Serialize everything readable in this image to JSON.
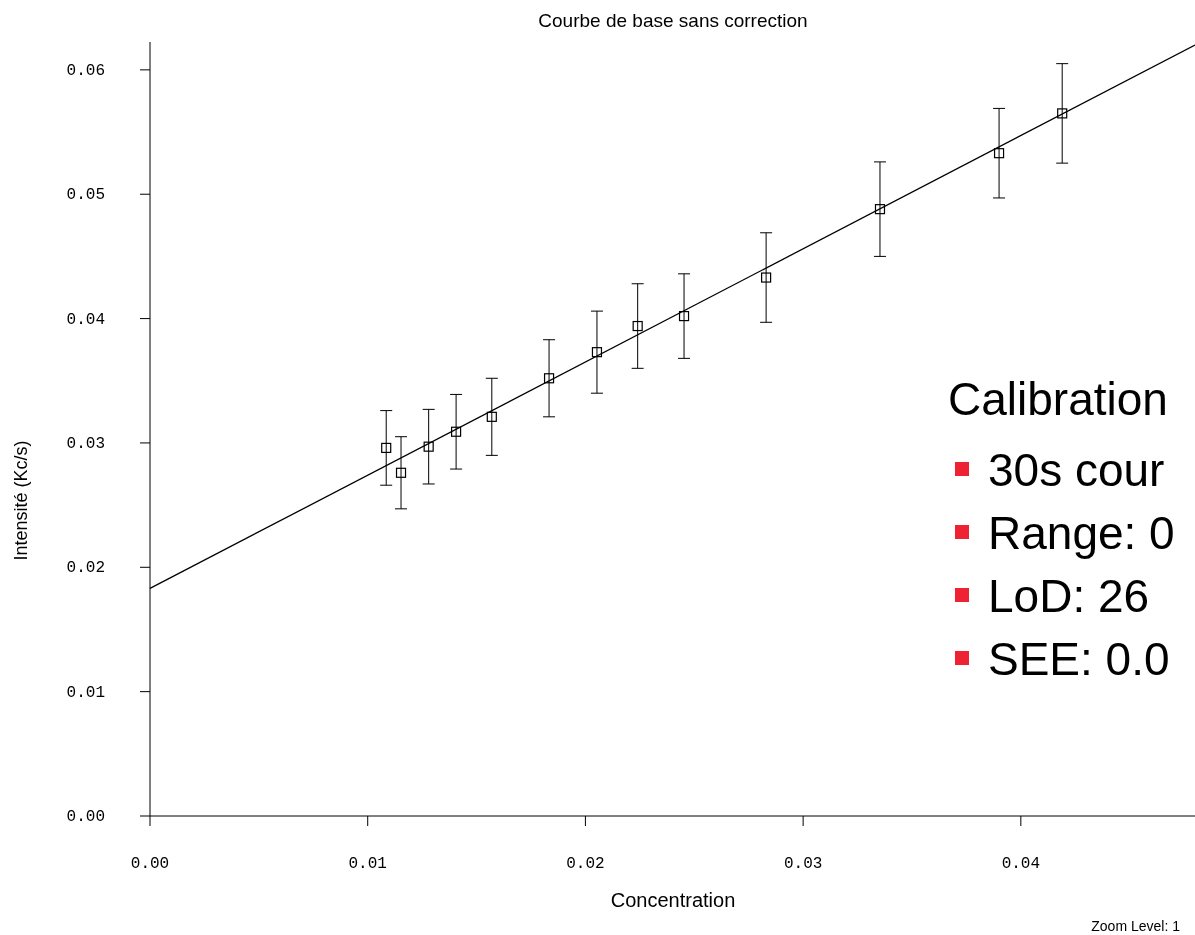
{
  "chart_data": {
    "type": "scatter",
    "title": "Courbe de base sans correction",
    "xlabel": "Concentration",
    "ylabel": "Intensité  (Kc/s)",
    "xlim": [
      0,
      0.048
    ],
    "ylim": [
      0,
      0.062
    ],
    "xticks": [
      {
        "value": 0,
        "label": "0.00"
      },
      {
        "value": 0.01,
        "label": "0.01"
      },
      {
        "value": 0.02,
        "label": "0.02"
      },
      {
        "value": 0.03,
        "label": "0.03"
      },
      {
        "value": 0.04,
        "label": "0.04"
      }
    ],
    "yticks": [
      {
        "value": 0,
        "label": "0.00"
      },
      {
        "value": 0.01,
        "label": "0.01"
      },
      {
        "value": 0.02,
        "label": "0.02"
      },
      {
        "value": 0.03,
        "label": "0.03"
      },
      {
        "value": 0.04,
        "label": "0.04"
      },
      {
        "value": 0.05,
        "label": "0.05"
      },
      {
        "value": 0.06,
        "label": "0.06"
      }
    ],
    "grid": false,
    "series": [
      {
        "color": "#000000",
        "marker": "square",
        "x": [
          0.01085,
          0.01153,
          0.0128,
          0.01406,
          0.0157,
          0.01833,
          0.02053,
          0.0224,
          0.02453,
          0.0283,
          0.03353,
          0.039,
          0.0419
        ],
        "values": [
          0.0296,
          0.0276,
          0.0297,
          0.0309,
          0.0321,
          0.0352,
          0.0373,
          0.0394,
          0.0402,
          0.0433,
          0.0488,
          0.0533,
          0.0565
        ],
        "errors": [
          0.003,
          0.0029,
          0.003,
          0.003,
          0.0031,
          0.0031,
          0.0033,
          0.0034,
          0.0034,
          0.0036,
          0.0038,
          0.0036,
          0.004
        ]
      },
      {
        "type": "line",
        "color": "#000000",
        "marker": "none",
        "x": [
          0,
          0.048
        ],
        "values": [
          0.0183,
          0.062
        ]
      }
    ],
    "annotations": [
      "Calibration",
      "30s cour",
      "Range: 0",
      "LoD: 26",
      "SEE: 0.0",
      "Zoom Level: 1"
    ]
  }
}
